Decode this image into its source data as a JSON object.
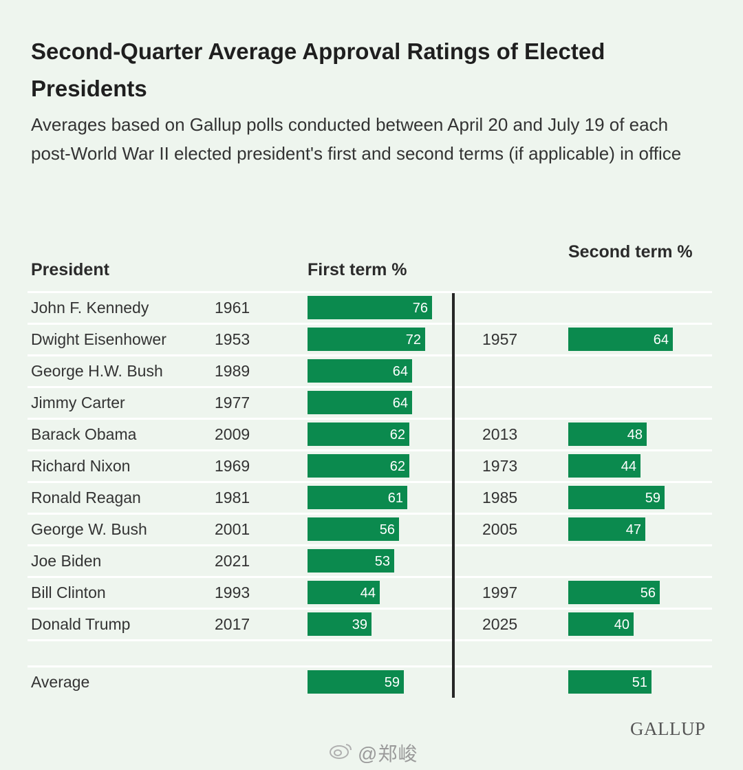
{
  "title": "Second-Quarter Average Approval Ratings of Elected Presidents",
  "subtitle": "Averages based on Gallup polls conducted between April 20 and July 19 of each post-World War II elected president's first and second terms (if applicable) in office",
  "headers": {
    "president": "President",
    "first": "First term %",
    "second": "Second term %"
  },
  "logo": "GALLUP",
  "watermark": "@郑峻",
  "colors": {
    "bar": "#0b8a4e",
    "background": "#eef5ee",
    "divider": "#262626"
  },
  "chart_data": {
    "type": "bar",
    "orientation": "horizontal",
    "title": "Second-Quarter Average Approval Ratings of Elected Presidents",
    "series": [
      {
        "name": "First term %",
        "values": [
          76,
          72,
          64,
          64,
          62,
          62,
          61,
          56,
          53,
          44,
          39
        ]
      },
      {
        "name": "Second term %",
        "values": [
          null,
          64,
          null,
          null,
          48,
          44,
          59,
          47,
          null,
          56,
          40
        ]
      }
    ],
    "rows": [
      {
        "name": "John F. Kennedy",
        "first_year": "1961",
        "first": 76,
        "second_year": "",
        "second": null
      },
      {
        "name": "Dwight Eisenhower",
        "first_year": "1953",
        "first": 72,
        "second_year": "1957",
        "second": 64
      },
      {
        "name": "George H.W. Bush",
        "first_year": "1989",
        "first": 64,
        "second_year": "",
        "second": null
      },
      {
        "name": "Jimmy Carter",
        "first_year": "1977",
        "first": 64,
        "second_year": "",
        "second": null
      },
      {
        "name": "Barack Obama",
        "first_year": "2009",
        "first": 62,
        "second_year": "2013",
        "second": 48
      },
      {
        "name": "Richard Nixon",
        "first_year": "1969",
        "first": 62,
        "second_year": "1973",
        "second": 44
      },
      {
        "name": "Ronald Reagan",
        "first_year": "1981",
        "first": 61,
        "second_year": "1985",
        "second": 59
      },
      {
        "name": "George W. Bush",
        "first_year": "2001",
        "first": 56,
        "second_year": "2005",
        "second": 47
      },
      {
        "name": "Joe Biden",
        "first_year": "2021",
        "first": 53,
        "second_year": "",
        "second": null
      },
      {
        "name": "Bill Clinton",
        "first_year": "1993",
        "first": 44,
        "second_year": "1997",
        "second": 56
      },
      {
        "name": "Donald Trump",
        "first_year": "2017",
        "first": 39,
        "second_year": "2025",
        "second": 40
      }
    ],
    "average": {
      "label": "Average",
      "first": 59,
      "second": 51
    },
    "xlim": [
      0,
      100
    ],
    "grid": false,
    "legend": "none"
  }
}
